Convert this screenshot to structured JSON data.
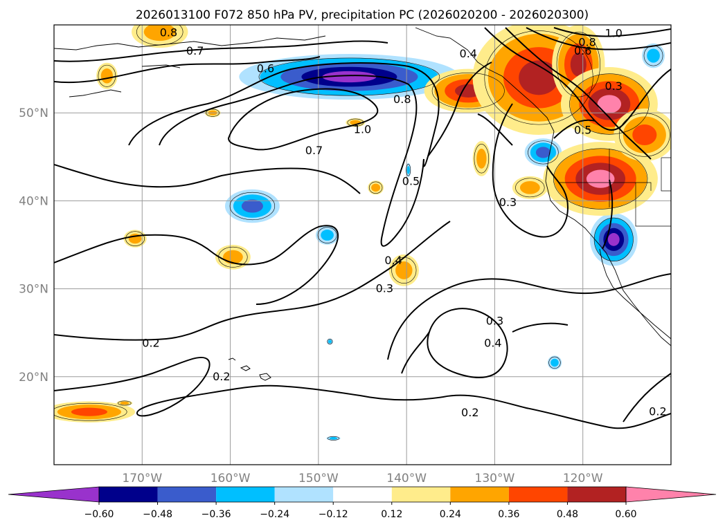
{
  "chart_data": {
    "type": "contour-map",
    "title": "2026013100 F072 850 hPa PV, precipitation PC (2026020200 - 2026020300)",
    "x_axis": {
      "range": [
        -180,
        -110
      ],
      "ticks": [
        -170,
        -160,
        -150,
        -140,
        -130,
        -120
      ],
      "tick_labels": [
        "170°W",
        "160°W",
        "150°W",
        "140°W",
        "130°W",
        "120°W"
      ]
    },
    "y_axis": {
      "range": [
        10,
        60
      ],
      "ticks": [
        20,
        30,
        40,
        50
      ],
      "tick_labels": [
        "20°N",
        "30°N",
        "40°N",
        "50°N"
      ]
    },
    "grid": true,
    "colorbar": {
      "orientation": "horizontal",
      "extend": "both",
      "levels": [
        -0.6,
        -0.48,
        -0.36,
        -0.24,
        -0.12,
        0.12,
        0.24,
        0.36,
        0.48,
        0.6
      ],
      "tick_labels": [
        "−0.60",
        "−0.48",
        "−0.36",
        "−0.24",
        "−0.12",
        "0.12",
        "0.24",
        "0.36",
        "0.48",
        "0.60"
      ],
      "colors": [
        "#9932cc",
        "#00008b",
        "#3a5ccc",
        "#00bfff",
        "#b0e2ff",
        "#ffffff",
        "#ffec8b",
        "#ffa500",
        "#ff4500",
        "#b22222",
        "#ff82ab"
      ]
    },
    "contour_labels": [
      {
        "text": "0.8",
        "lon": -167.0,
        "lat": 59.1
      },
      {
        "text": "0.7",
        "lon": -164.0,
        "lat": 57.0
      },
      {
        "text": "0.6",
        "lon": -156.0,
        "lat": 55.0
      },
      {
        "text": "1.0",
        "lon": -145.0,
        "lat": 48.1
      },
      {
        "text": "0.7",
        "lon": -150.5,
        "lat": 45.7
      },
      {
        "text": "0.8",
        "lon": -140.5,
        "lat": 51.5
      },
      {
        "text": "0.5",
        "lon": -139.5,
        "lat": 42.2
      },
      {
        "text": "0.4",
        "lon": -141.5,
        "lat": 33.2
      },
      {
        "text": "0.3",
        "lon": -142.5,
        "lat": 30.0
      },
      {
        "text": "0.3",
        "lon": -128.5,
        "lat": 39.8
      },
      {
        "text": "0.3",
        "lon": -130.0,
        "lat": 26.3
      },
      {
        "text": "0.4",
        "lon": -130.2,
        "lat": 23.8
      },
      {
        "text": "0.2",
        "lon": -169.0,
        "lat": 23.8
      },
      {
        "text": "0.2",
        "lon": -161.0,
        "lat": 20.0
      },
      {
        "text": "0.2",
        "lon": -132.8,
        "lat": 15.9
      },
      {
        "text": "0.2",
        "lon": -111.5,
        "lat": 16.0
      },
      {
        "text": "1.0",
        "lon": -116.5,
        "lat": 59.0
      },
      {
        "text": "0.8",
        "lon": -119.5,
        "lat": 58.0
      },
      {
        "text": "0.6",
        "lon": -120.0,
        "lat": 57.0
      },
      {
        "text": "0.3",
        "lon": -116.5,
        "lat": 53.0
      },
      {
        "text": "0.5",
        "lon": -120.0,
        "lat": 48.0
      },
      {
        "text": "0.4",
        "lon": -133.0,
        "lat": 56.7
      }
    ],
    "precipitation_pc_blobs": [
      {
        "lon": -146.5,
        "lat": 54.1,
        "rx": 12.5,
        "ry": 2.6,
        "levels": [
          -0.12,
          -0.24,
          -0.36,
          -0.48,
          -0.6
        ]
      },
      {
        "lon": -157.5,
        "lat": 39.4,
        "rx": 3.1,
        "ry": 1.9,
        "levels": [
          -0.12,
          -0.24,
          -0.36
        ]
      },
      {
        "lon": -149.0,
        "lat": 36.1,
        "rx": 1.3,
        "ry": 1.1,
        "levels": [
          -0.12,
          -0.24
        ]
      },
      {
        "lon": -124.5,
        "lat": 45.5,
        "rx": 2.1,
        "ry": 1.6,
        "levels": [
          -0.12,
          -0.24,
          -0.36
        ]
      },
      {
        "lon": -116.5,
        "lat": 35.6,
        "rx": 2.7,
        "ry": 3.0,
        "levels": [
          -0.12,
          -0.24,
          -0.36,
          -0.48,
          -0.6
        ]
      },
      {
        "lon": -123.2,
        "lat": 21.6,
        "rx": 0.8,
        "ry": 0.8,
        "levels": [
          -0.12,
          -0.24
        ]
      },
      {
        "lon": -148.7,
        "lat": 24.0,
        "rx": 0.35,
        "ry": 0.35,
        "levels": [
          -0.12,
          -0.24
        ]
      },
      {
        "lon": -148.3,
        "lat": 13.0,
        "rx": 0.8,
        "ry": 0.25,
        "levels": [
          -0.12,
          -0.24
        ]
      },
      {
        "lon": -112.0,
        "lat": 56.5,
        "rx": 1.3,
        "ry": 1.4,
        "levels": [
          -0.12,
          -0.24
        ]
      },
      {
        "lon": -139.8,
        "lat": 43.5,
        "rx": 0.3,
        "ry": 0.8,
        "levels": [
          -0.12,
          -0.24
        ]
      },
      {
        "lon": -168.0,
        "lat": 59.2,
        "rx": 3.2,
        "ry": 1.8,
        "levels": [
          0.12,
          0.24
        ]
      },
      {
        "lon": -174.0,
        "lat": 54.2,
        "rx": 1.2,
        "ry": 1.5,
        "levels": [
          0.12,
          0.24
        ]
      },
      {
        "lon": -162.0,
        "lat": 50.0,
        "rx": 0.9,
        "ry": 0.5,
        "levels": [
          0.12,
          0.24
        ]
      },
      {
        "lon": -145.8,
        "lat": 48.9,
        "rx": 1.1,
        "ry": 0.5,
        "levels": [
          0.12,
          0.24
        ]
      },
      {
        "lon": -143.5,
        "lat": 41.5,
        "rx": 0.9,
        "ry": 0.8,
        "levels": [
          0.12,
          0.24
        ]
      },
      {
        "lon": -170.8,
        "lat": 35.7,
        "rx": 1.3,
        "ry": 1.0,
        "levels": [
          0.12,
          0.24
        ]
      },
      {
        "lon": -159.7,
        "lat": 33.6,
        "rx": 2.0,
        "ry": 1.4,
        "levels": [
          0.12,
          0.24
        ]
      },
      {
        "lon": -140.3,
        "lat": 32.1,
        "rx": 1.7,
        "ry": 1.8,
        "levels": [
          0.12,
          0.24
        ]
      },
      {
        "lon": -172.0,
        "lat": 17.0,
        "rx": 0.9,
        "ry": 0.3,
        "levels": [
          0.12,
          0.24
        ]
      },
      {
        "lon": -176.0,
        "lat": 16.0,
        "rx": 5.2,
        "ry": 1.2,
        "levels": [
          0.12,
          0.24,
          0.36
        ]
      },
      {
        "lon": -131.5,
        "lat": 44.8,
        "rx": 1.0,
        "ry": 2.0,
        "levels": [
          0.12,
          0.24
        ]
      },
      {
        "lon": -126.0,
        "lat": 41.5,
        "rx": 2.0,
        "ry": 1.3,
        "levels": [
          0.12,
          0.24
        ]
      },
      {
        "lon": -133.0,
        "lat": 52.5,
        "rx": 5.0,
        "ry": 2.5,
        "levels": [
          0.12,
          0.24,
          0.36,
          0.48
        ]
      },
      {
        "lon": -125.0,
        "lat": 54.0,
        "rx": 7.5,
        "ry": 6.5,
        "levels": [
          0.12,
          0.24,
          0.36,
          0.48
        ]
      },
      {
        "lon": -120.5,
        "lat": 55.5,
        "rx": 3.0,
        "ry": 4.5,
        "levels": [
          0.12,
          0.24,
          0.36,
          0.48
        ]
      },
      {
        "lon": -117.0,
        "lat": 51.0,
        "rx": 5.5,
        "ry": 4.2,
        "levels": [
          0.12,
          0.24,
          0.36,
          0.48,
          0.6
        ]
      },
      {
        "lon": -118.0,
        "lat": 42.5,
        "rx": 6.5,
        "ry": 4.2,
        "levels": [
          0.12,
          0.24,
          0.36,
          0.48,
          0.6
        ]
      },
      {
        "lon": -113.0,
        "lat": 47.5,
        "rx": 3.5,
        "ry": 3.0,
        "levels": [
          0.12,
          0.24,
          0.36
        ]
      }
    ]
  }
}
